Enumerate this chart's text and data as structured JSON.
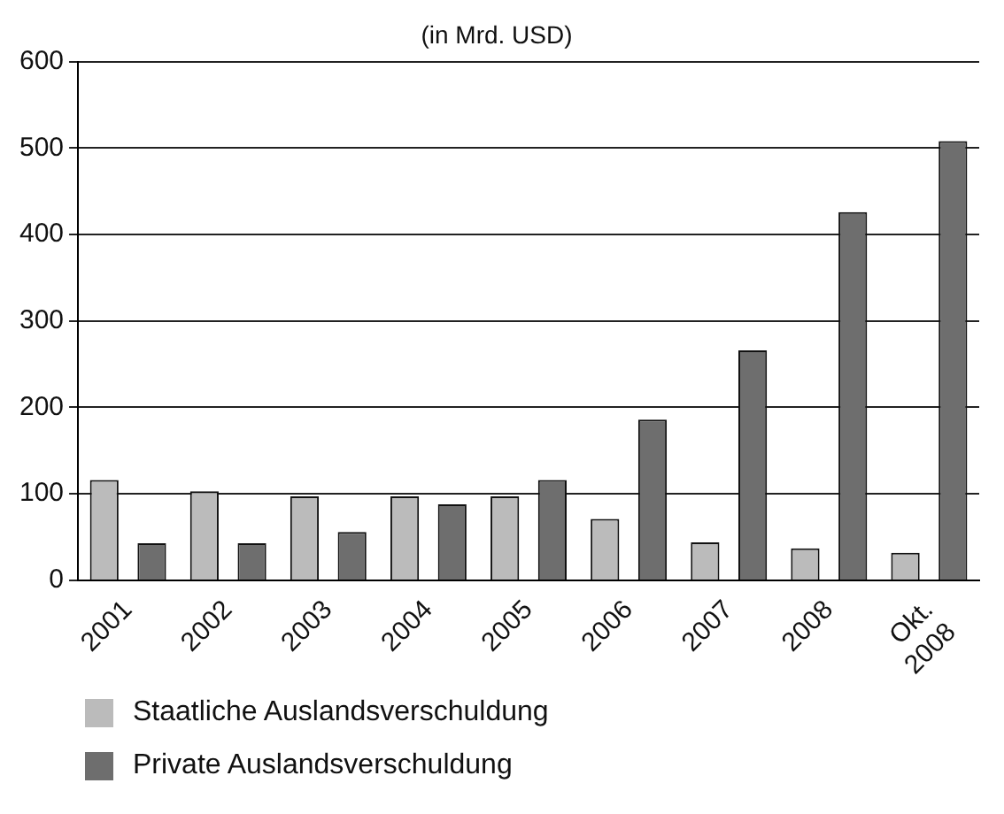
{
  "chart_data": {
    "type": "bar",
    "title": "(in Mrd. USD)",
    "categories": [
      "2001",
      "2002",
      "2003",
      "2004",
      "2005",
      "2006",
      "2007",
      "2008",
      "Okt.\n2008"
    ],
    "series": [
      {
        "name": "Staatliche Auslandsverschuldung",
        "color": "#bbbbbb",
        "values": [
          116,
          103,
          97,
          97,
          97,
          71,
          44,
          37,
          32
        ]
      },
      {
        "name": "Private Auslandsverschuldung",
        "color": "#6e6e6e",
        "values": [
          43,
          43,
          56,
          88,
          116,
          186,
          266,
          426,
          508
        ]
      }
    ],
    "ylim": [
      0,
      600
    ],
    "yticks": [
      0,
      100,
      200,
      300,
      400,
      500,
      600
    ],
    "grid": "y",
    "legend": "bottom"
  }
}
